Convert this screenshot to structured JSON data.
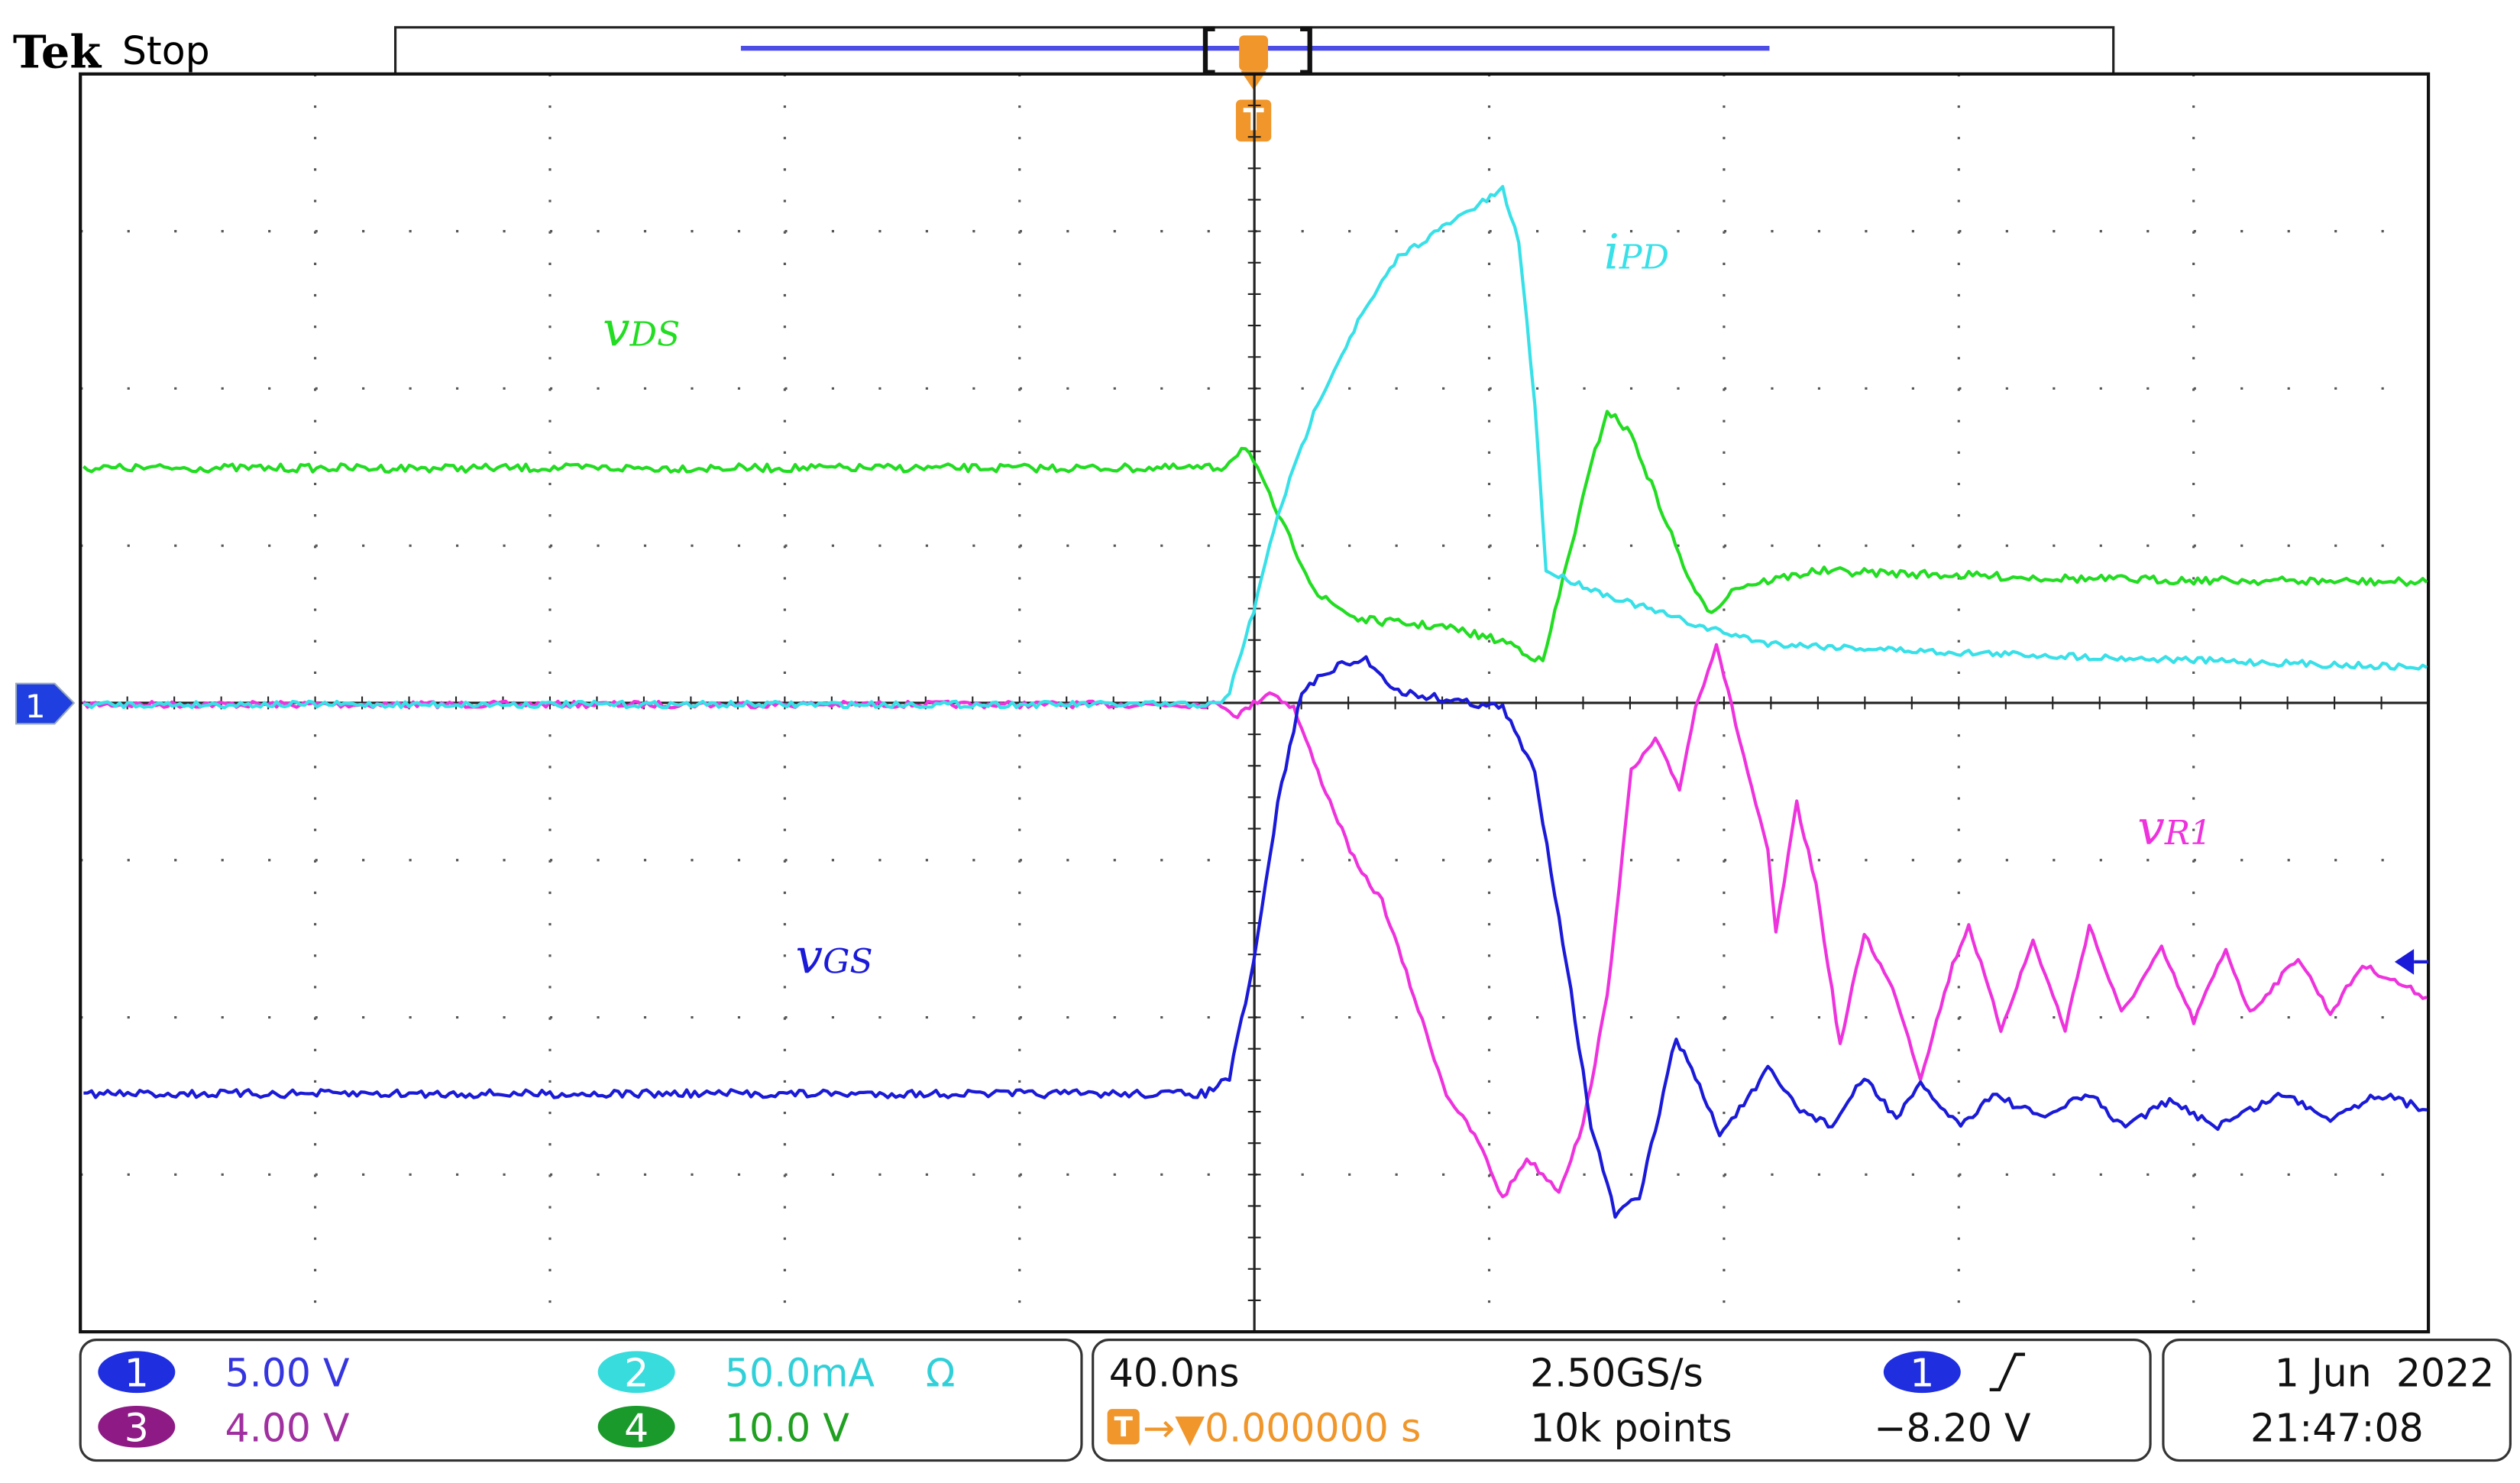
{
  "header": {
    "brand": "Tek",
    "status": "Stop",
    "trigger_marker": "T"
  },
  "channel_marker": "1",
  "waveform_labels": [
    {
      "symbol": "v",
      "subscript": "DS"
    },
    {
      "symbol": "i",
      "subscript": "PD"
    },
    {
      "symbol": "v",
      "subscript": "GS"
    },
    {
      "symbol": "v",
      "subscript": "R1"
    }
  ],
  "channels": [
    {
      "number": "1",
      "scale": "5.00 V"
    },
    {
      "number": "2",
      "scale": "50.0mA",
      "coupling": "Ω"
    },
    {
      "number": "3",
      "scale": "4.00 V"
    },
    {
      "number": "4",
      "scale": "10.0 V"
    }
  ],
  "timebase": {
    "scale": "40.0ns",
    "trigger_position_marker": "T",
    "trigger_position": "→▼0.000000 s",
    "sample_rate": "2.50GS/s",
    "record_length": "10k points",
    "trigger_source": "1",
    "trigger_level": "−8.20 V"
  },
  "datetime": {
    "date": "1 Jun  2022",
    "time": "21:47:08"
  }
}
